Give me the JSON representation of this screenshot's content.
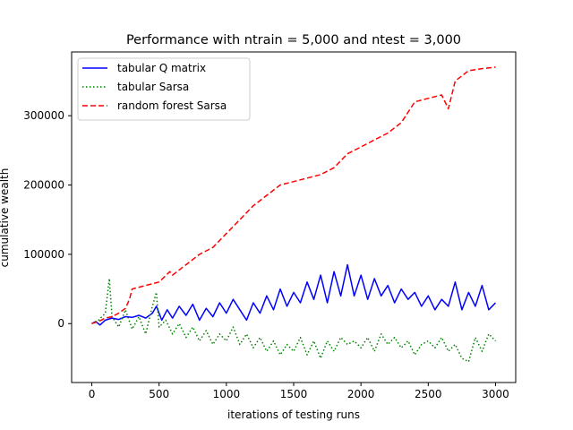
{
  "chart_data": {
    "type": "line",
    "title": "Performance with ntrain = 5,000 and ntest = 3,000",
    "xlabel": "iterations of testing runs",
    "ylabel": "cumulative wealth",
    "xlim": [
      -150,
      3150
    ],
    "ylim": [
      -85000,
      392000
    ],
    "xticks": [
      0,
      500,
      1000,
      1500,
      2000,
      2500,
      3000
    ],
    "xtick_labels": [
      "0",
      "500",
      "1000",
      "1500",
      "2000",
      "2500",
      "3000"
    ],
    "yticks": [
      0,
      100000,
      200000,
      300000
    ],
    "ytick_labels": [
      "0",
      "100000",
      "200000",
      "300000"
    ],
    "grid": false,
    "legend_position": "upper-left",
    "series": [
      {
        "name": "tabular Q matrix",
        "color": "#0000ff",
        "dash": "solid",
        "points": [
          [
            0,
            0
          ],
          [
            30,
            3000
          ],
          [
            60,
            -2000
          ],
          [
            100,
            5000
          ],
          [
            150,
            8000
          ],
          [
            200,
            6000
          ],
          [
            250,
            10000
          ],
          [
            300,
            9000
          ],
          [
            350,
            12000
          ],
          [
            400,
            8000
          ],
          [
            450,
            15000
          ],
          [
            480,
            25000
          ],
          [
            520,
            5000
          ],
          [
            560,
            20000
          ],
          [
            600,
            8000
          ],
          [
            650,
            25000
          ],
          [
            700,
            12000
          ],
          [
            750,
            28000
          ],
          [
            800,
            5000
          ],
          [
            850,
            22000
          ],
          [
            900,
            10000
          ],
          [
            950,
            30000
          ],
          [
            1000,
            15000
          ],
          [
            1050,
            35000
          ],
          [
            1100,
            20000
          ],
          [
            1150,
            5000
          ],
          [
            1200,
            30000
          ],
          [
            1250,
            15000
          ],
          [
            1300,
            40000
          ],
          [
            1350,
            20000
          ],
          [
            1400,
            50000
          ],
          [
            1450,
            25000
          ],
          [
            1500,
            45000
          ],
          [
            1550,
            30000
          ],
          [
            1600,
            60000
          ],
          [
            1650,
            35000
          ],
          [
            1700,
            70000
          ],
          [
            1750,
            30000
          ],
          [
            1800,
            75000
          ],
          [
            1850,
            40000
          ],
          [
            1900,
            85000
          ],
          [
            1950,
            40000
          ],
          [
            2000,
            70000
          ],
          [
            2050,
            35000
          ],
          [
            2100,
            65000
          ],
          [
            2150,
            40000
          ],
          [
            2200,
            55000
          ],
          [
            2250,
            30000
          ],
          [
            2300,
            50000
          ],
          [
            2350,
            35000
          ],
          [
            2400,
            45000
          ],
          [
            2450,
            25000
          ],
          [
            2500,
            40000
          ],
          [
            2550,
            20000
          ],
          [
            2600,
            35000
          ],
          [
            2650,
            25000
          ],
          [
            2700,
            60000
          ],
          [
            2750,
            20000
          ],
          [
            2800,
            45000
          ],
          [
            2850,
            25000
          ],
          [
            2900,
            55000
          ],
          [
            2950,
            20000
          ],
          [
            3000,
            30000
          ]
        ]
      },
      {
        "name": "tabular Sarsa",
        "color": "#008000",
        "dash": "dotted",
        "points": [
          [
            0,
            0
          ],
          [
            50,
            5000
          ],
          [
            100,
            15000
          ],
          [
            130,
            65000
          ],
          [
            150,
            10000
          ],
          [
            200,
            -5000
          ],
          [
            250,
            20000
          ],
          [
            300,
            -8000
          ],
          [
            350,
            10000
          ],
          [
            400,
            -15000
          ],
          [
            450,
            25000
          ],
          [
            480,
            45000
          ],
          [
            500,
            -5000
          ],
          [
            550,
            5000
          ],
          [
            600,
            -15000
          ],
          [
            650,
            0
          ],
          [
            700,
            -20000
          ],
          [
            750,
            -5000
          ],
          [
            800,
            -25000
          ],
          [
            850,
            -10000
          ],
          [
            900,
            -30000
          ],
          [
            950,
            -15000
          ],
          [
            1000,
            -25000
          ],
          [
            1050,
            -5000
          ],
          [
            1100,
            -30000
          ],
          [
            1150,
            -15000
          ],
          [
            1200,
            -35000
          ],
          [
            1250,
            -20000
          ],
          [
            1300,
            -40000
          ],
          [
            1350,
            -25000
          ],
          [
            1400,
            -45000
          ],
          [
            1450,
            -30000
          ],
          [
            1500,
            -40000
          ],
          [
            1550,
            -20000
          ],
          [
            1600,
            -45000
          ],
          [
            1650,
            -25000
          ],
          [
            1700,
            -50000
          ],
          [
            1750,
            -25000
          ],
          [
            1800,
            -40000
          ],
          [
            1850,
            -20000
          ],
          [
            1900,
            -30000
          ],
          [
            1950,
            -25000
          ],
          [
            2000,
            -35000
          ],
          [
            2050,
            -20000
          ],
          [
            2100,
            -40000
          ],
          [
            2150,
            -15000
          ],
          [
            2200,
            -30000
          ],
          [
            2250,
            -20000
          ],
          [
            2300,
            -35000
          ],
          [
            2350,
            -25000
          ],
          [
            2400,
            -45000
          ],
          [
            2450,
            -30000
          ],
          [
            2500,
            -25000
          ],
          [
            2550,
            -35000
          ],
          [
            2600,
            -20000
          ],
          [
            2650,
            -40000
          ],
          [
            2700,
            -30000
          ],
          [
            2750,
            -50000
          ],
          [
            2800,
            -55000
          ],
          [
            2850,
            -20000
          ],
          [
            2900,
            -40000
          ],
          [
            2950,
            -15000
          ],
          [
            3000,
            -25000
          ]
        ]
      },
      {
        "name": "random forest Sarsa",
        "color": "#ff0000",
        "dash": "dashed",
        "points": [
          [
            0,
            0
          ],
          [
            50,
            3000
          ],
          [
            100,
            8000
          ],
          [
            150,
            10000
          ],
          [
            200,
            15000
          ],
          [
            250,
            22000
          ],
          [
            280,
            35000
          ],
          [
            300,
            50000
          ],
          [
            400,
            55000
          ],
          [
            500,
            60000
          ],
          [
            580,
            75000
          ],
          [
            600,
            70000
          ],
          [
            700,
            85000
          ],
          [
            800,
            100000
          ],
          [
            900,
            110000
          ],
          [
            1000,
            130000
          ],
          [
            1100,
            150000
          ],
          [
            1200,
            170000
          ],
          [
            1300,
            185000
          ],
          [
            1400,
            200000
          ],
          [
            1500,
            205000
          ],
          [
            1600,
            210000
          ],
          [
            1700,
            215000
          ],
          [
            1800,
            225000
          ],
          [
            1900,
            245000
          ],
          [
            2000,
            255000
          ],
          [
            2100,
            265000
          ],
          [
            2200,
            275000
          ],
          [
            2300,
            290000
          ],
          [
            2400,
            320000
          ],
          [
            2500,
            325000
          ],
          [
            2600,
            330000
          ],
          [
            2650,
            310000
          ],
          [
            2700,
            350000
          ],
          [
            2800,
            365000
          ],
          [
            2900,
            368000
          ],
          [
            3000,
            370000
          ]
        ]
      }
    ]
  }
}
